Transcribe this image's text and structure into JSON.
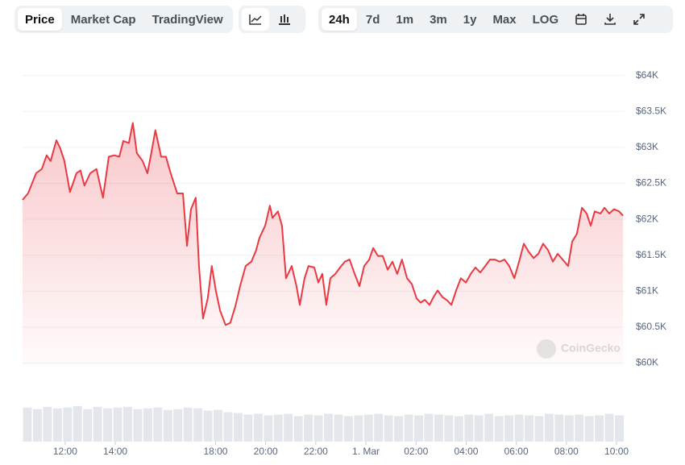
{
  "toolbar": {
    "view_tabs": [
      "Price",
      "Market Cap",
      "TradingView"
    ],
    "active_view": "Price",
    "range_tabs": [
      "24h",
      "7d",
      "1m",
      "3m",
      "1y",
      "Max",
      "LOG"
    ],
    "active_range": "24h"
  },
  "chart_data": {
    "type": "line",
    "color": "#ea3943",
    "watermark": "CoinGecko",
    "x": [
      10.3,
      10.52,
      10.84,
      11.07,
      11.26,
      11.42,
      11.65,
      11.81,
      11.97,
      12.19,
      12.45,
      12.61,
      12.77,
      13,
      13.25,
      13.51,
      13.74,
      13.96,
      14.16,
      14.32,
      14.54,
      14.7,
      14.86,
      15.09,
      15.28,
      15.41,
      15.6,
      15.83,
      16.02,
      16.21,
      16.47,
      16.7,
      16.86,
      17.02,
      17.21,
      17.34,
      17.5,
      17.69,
      17.85,
      18.01,
      18.18,
      18.4,
      18.59,
      18.79,
      18.98,
      19.2,
      19.43,
      19.62,
      19.75,
      19.98,
      20.17,
      20.27,
      20.49,
      20.65,
      20.81,
      21.04,
      21.23,
      21.36,
      21.55,
      21.71,
      21.94,
      22.1,
      22.26,
      22.42,
      22.58,
      22.78,
      22.97,
      23.16,
      23.35,
      23.55,
      23.74,
      23.93,
      24.13,
      24.29,
      24.48,
      24.67,
      24.87,
      25.06,
      25.25,
      25.44,
      25.64,
      25.83,
      26.02,
      26.18,
      26.35,
      26.54,
      26.7,
      26.86,
      27.05,
      27.25,
      27.41,
      27.6,
      27.79,
      27.99,
      28.18,
      28.37,
      28.56,
      28.76,
      28.95,
      29.14,
      29.34,
      29.53,
      29.72,
      29.92,
      30.11,
      30.3,
      30.49,
      30.69,
      30.88,
      31.07,
      31.27,
      31.46,
      31.65,
      31.85,
      32.07,
      32.23,
      32.42,
      32.62,
      32.81,
      32.97,
      33.13,
      33.36,
      33.52,
      33.71,
      33.9,
      34.1,
      34.26
    ],
    "values": [
      62270,
      62360,
      62640,
      62700,
      62890,
      62810,
      63100,
      62980,
      62810,
      62380,
      62640,
      62680,
      62470,
      62640,
      62700,
      62300,
      62870,
      62890,
      62870,
      63090,
      63060,
      63340,
      62920,
      62810,
      62640,
      62870,
      63240,
      62870,
      62870,
      62640,
      62360,
      62360,
      61630,
      62140,
      62300,
      61350,
      60620,
      60900,
      61350,
      61010,
      60730,
      60530,
      60560,
      60790,
      61070,
      61350,
      61410,
      61570,
      61740,
      61910,
      62190,
      62020,
      62110,
      61910,
      61180,
      61350,
      61070,
      60810,
      61180,
      61350,
      61330,
      61120,
      61240,
      60810,
      61180,
      61240,
      61330,
      61410,
      61440,
      61240,
      61070,
      61350,
      61440,
      61600,
      61490,
      61490,
      61300,
      61410,
      61240,
      61440,
      61180,
      61100,
      60900,
      60840,
      60880,
      60810,
      60920,
      61010,
      60920,
      60870,
      60810,
      61010,
      61180,
      61120,
      61240,
      61330,
      61260,
      61350,
      61440,
      61440,
      61410,
      61440,
      61350,
      61180,
      61410,
      61660,
      61550,
      61460,
      61520,
      61660,
      61570,
      61410,
      61520,
      61440,
      61350,
      61690,
      61800,
      62160,
      62080,
      61910,
      62110,
      62080,
      62160,
      62080,
      62140,
      62110,
      62050
    ],
    "xlim": [
      10.3,
      34.32
    ],
    "xticks": [
      {
        "value": 12,
        "label": "12:00"
      },
      {
        "value": 14,
        "label": "14:00"
      },
      {
        "value": 18,
        "label": "18:00"
      },
      {
        "value": 20,
        "label": "20:00"
      },
      {
        "value": 22,
        "label": "22:00"
      },
      {
        "value": 24,
        "label": "1. Mar"
      },
      {
        "value": 26,
        "label": "02:00"
      },
      {
        "value": 28,
        "label": "04:00"
      },
      {
        "value": 30,
        "label": "06:00"
      },
      {
        "value": 32,
        "label": "08:00"
      },
      {
        "value": 34,
        "label": "10:00"
      }
    ],
    "ylim": [
      59950,
      64400
    ],
    "yticks": [
      {
        "value": 60000,
        "label": "$60K"
      },
      {
        "value": 60500,
        "label": "$60.5K"
      },
      {
        "value": 61000,
        "label": "$61K"
      },
      {
        "value": 61500,
        "label": "$61.5K"
      },
      {
        "value": 62000,
        "label": "$62K"
      },
      {
        "value": 62500,
        "label": "$62.5K"
      },
      {
        "value": 63000,
        "label": "$63K"
      },
      {
        "value": 63500,
        "label": "$63.5K"
      },
      {
        "value": 64000,
        "label": "$64K"
      }
    ],
    "grid": true,
    "volume": {
      "color": "#e3e6ea",
      "ylim": [
        0,
        50
      ],
      "values": [
        44,
        42,
        45,
        43,
        44,
        46,
        42,
        45,
        43,
        44,
        45,
        42,
        43,
        44,
        41,
        42,
        44,
        43,
        40,
        41,
        38,
        37,
        35,
        36,
        34,
        35,
        36,
        33,
        35,
        34,
        36,
        35,
        33,
        34,
        35,
        36,
        34,
        33,
        35,
        34,
        36,
        35,
        34,
        33,
        35,
        34,
        36,
        33,
        34,
        35,
        34,
        33,
        36,
        35,
        34,
        35,
        33,
        34,
        36,
        34
      ]
    }
  }
}
